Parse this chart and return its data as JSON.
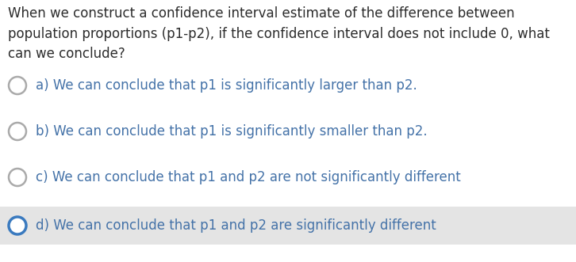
{
  "question": "When we construct a confidence interval estimate of the difference between\npopulation proportions (p1-p2), if the confidence interval does not include 0, what\ncan we conclude?",
  "options": [
    "a) We can conclude that p1 is significantly larger than p2.",
    "b) We can conclude that p1 is significantly smaller than p2.",
    "c) We can conclude that p1 and p2 are not significantly different",
    "d) We can conclude that p1 and p2 are significantly different"
  ],
  "correct_index": 3,
  "text_color": "#4472a8",
  "question_color": "#2c2c2c",
  "circle_color_unselected": "#aaaaaa",
  "circle_color_selected": "#3a7abf",
  "selected_bg": "#e4e4e4",
  "font_size": 12,
  "question_font_size": 12,
  "bg_color": "#ffffff",
  "fig_width": 7.26,
  "fig_height": 3.31,
  "dpi": 100
}
